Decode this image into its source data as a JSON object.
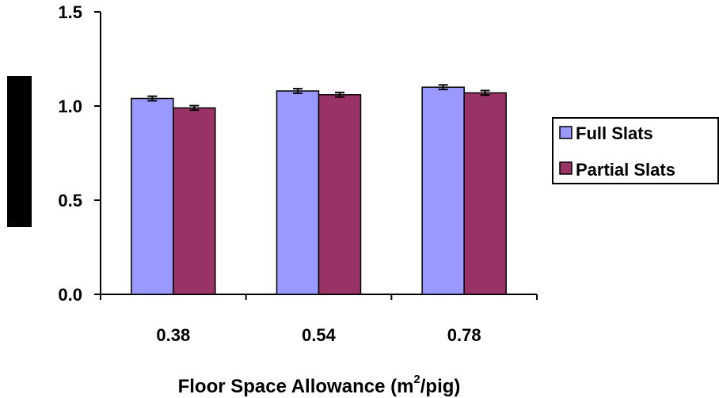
{
  "chart_data": {
    "type": "bar",
    "categories": [
      "0.38",
      "0.54",
      "0.78"
    ],
    "series": [
      {
        "name": "Full Slats",
        "values": [
          1.04,
          1.08,
          1.1
        ],
        "errors": [
          0.012,
          0.012,
          0.012
        ],
        "color": "#9999ff"
      },
      {
        "name": "Partial Slats",
        "values": [
          0.99,
          1.06,
          1.07
        ],
        "errors": [
          0.012,
          0.012,
          0.012
        ],
        "color": "#993366"
      }
    ],
    "xlabel": {
      "prefix": "Floor Space Allowance (m",
      "sup": "2",
      "suffix": "/pig)"
    },
    "ylim": [
      0,
      1.5
    ],
    "yticks": [
      "0.0",
      "0.5",
      "1.0",
      "1.5"
    ],
    "ytick_values": [
      0,
      0.5,
      1.0,
      1.5
    ],
    "grid": false,
    "legend_position": "right",
    "ylabel_box_color": "#000000"
  }
}
